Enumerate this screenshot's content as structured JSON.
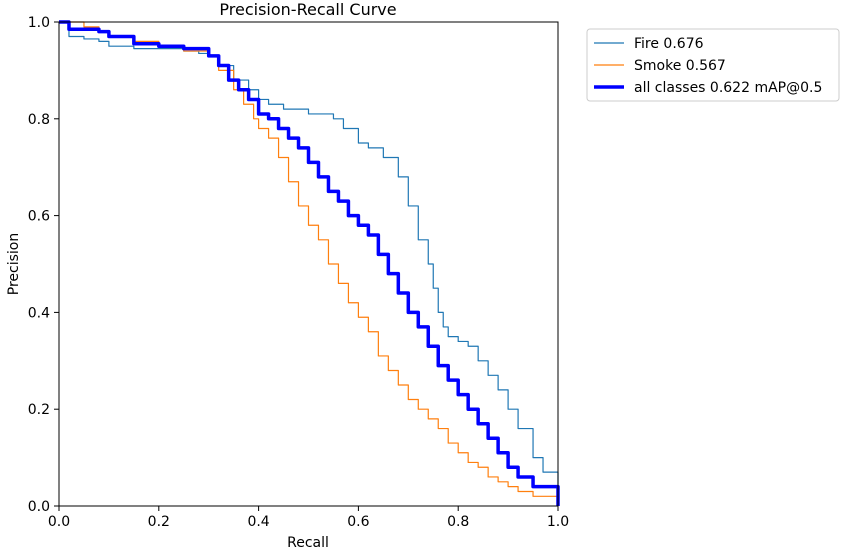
{
  "chart_data": {
    "type": "line",
    "title": "Precision-Recall Curve",
    "xlabel": "Recall",
    "ylabel": "Precision",
    "xlim": [
      0,
      1
    ],
    "ylim": [
      0,
      1
    ],
    "x_ticks": [
      "0.0",
      "0.2",
      "0.4",
      "0.6",
      "0.8",
      "1.0"
    ],
    "y_ticks": [
      "0.0",
      "0.2",
      "0.4",
      "0.6",
      "0.8",
      "1.0"
    ],
    "grid": false,
    "legend_position": "outside-top-right",
    "series": [
      {
        "name": "Fire 0.676",
        "color": "#1f77b4",
        "line": "thin",
        "x": [
          0.0,
          0.015,
          0.02,
          0.05,
          0.08,
          0.1,
          0.15,
          0.2,
          0.25,
          0.28,
          0.3,
          0.32,
          0.35,
          0.38,
          0.4,
          0.42,
          0.45,
          0.5,
          0.53,
          0.55,
          0.57,
          0.6,
          0.62,
          0.65,
          0.68,
          0.7,
          0.72,
          0.74,
          0.75,
          0.76,
          0.77,
          0.78,
          0.8,
          0.82,
          0.84,
          0.86,
          0.88,
          0.9,
          0.92,
          0.95,
          0.97,
          1.0
        ],
        "y": [
          1.0,
          1.0,
          0.97,
          0.965,
          0.96,
          0.95,
          0.945,
          0.945,
          0.94,
          0.935,
          0.93,
          0.91,
          0.88,
          0.86,
          0.84,
          0.83,
          0.82,
          0.81,
          0.81,
          0.8,
          0.78,
          0.75,
          0.74,
          0.72,
          0.68,
          0.62,
          0.55,
          0.5,
          0.45,
          0.4,
          0.37,
          0.35,
          0.34,
          0.33,
          0.3,
          0.27,
          0.24,
          0.2,
          0.16,
          0.1,
          0.07,
          0.0
        ]
      },
      {
        "name": "Smoke 0.567",
        "color": "#ff7f0e",
        "line": "thin",
        "x": [
          0.0,
          0.02,
          0.05,
          0.08,
          0.1,
          0.15,
          0.2,
          0.25,
          0.3,
          0.32,
          0.35,
          0.37,
          0.39,
          0.4,
          0.42,
          0.44,
          0.46,
          0.48,
          0.5,
          0.52,
          0.54,
          0.56,
          0.58,
          0.6,
          0.62,
          0.64,
          0.66,
          0.68,
          0.7,
          0.72,
          0.74,
          0.76,
          0.78,
          0.8,
          0.82,
          0.84,
          0.86,
          0.88,
          0.9,
          0.92,
          0.95,
          1.0
        ],
        "y": [
          1.0,
          1.0,
          0.99,
          0.98,
          0.97,
          0.96,
          0.95,
          0.94,
          0.93,
          0.9,
          0.86,
          0.83,
          0.8,
          0.78,
          0.76,
          0.72,
          0.67,
          0.62,
          0.58,
          0.55,
          0.5,
          0.46,
          0.42,
          0.39,
          0.36,
          0.31,
          0.28,
          0.25,
          0.22,
          0.2,
          0.18,
          0.16,
          0.13,
          0.11,
          0.09,
          0.08,
          0.06,
          0.05,
          0.04,
          0.03,
          0.02,
          0.0
        ]
      },
      {
        "name": "all classes 0.622 mAP@0.5",
        "color": "#0000ff",
        "line": "thick",
        "x": [
          0.0,
          0.02,
          0.05,
          0.08,
          0.1,
          0.15,
          0.2,
          0.25,
          0.3,
          0.32,
          0.34,
          0.36,
          0.38,
          0.4,
          0.42,
          0.44,
          0.46,
          0.48,
          0.5,
          0.52,
          0.54,
          0.56,
          0.58,
          0.6,
          0.62,
          0.64,
          0.66,
          0.68,
          0.7,
          0.72,
          0.74,
          0.76,
          0.78,
          0.8,
          0.82,
          0.84,
          0.86,
          0.88,
          0.9,
          0.92,
          0.95,
          1.0
        ],
        "y": [
          1.0,
          0.985,
          0.985,
          0.98,
          0.97,
          0.955,
          0.95,
          0.945,
          0.93,
          0.91,
          0.88,
          0.86,
          0.84,
          0.81,
          0.8,
          0.78,
          0.76,
          0.74,
          0.71,
          0.68,
          0.65,
          0.63,
          0.6,
          0.58,
          0.56,
          0.52,
          0.48,
          0.44,
          0.4,
          0.37,
          0.33,
          0.29,
          0.26,
          0.23,
          0.2,
          0.17,
          0.14,
          0.11,
          0.08,
          0.06,
          0.04,
          0.0
        ]
      }
    ]
  }
}
